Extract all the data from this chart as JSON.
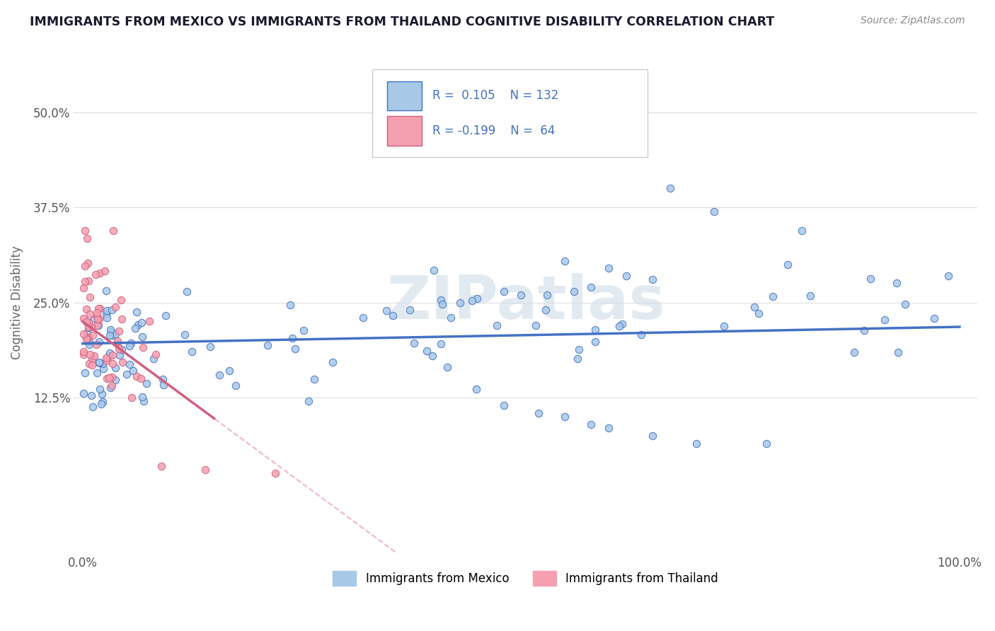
{
  "title": "IMMIGRANTS FROM MEXICO VS IMMIGRANTS FROM THAILAND COGNITIVE DISABILITY CORRELATION CHART",
  "source": "Source: ZipAtlas.com",
  "ylabel": "Cognitive Disability",
  "xlim": [
    0.0,
    1.0
  ],
  "ylim": [
    -0.08,
    0.58
  ],
  "xtick_positions": [
    0.0,
    1.0
  ],
  "xtick_labels": [
    "0.0%",
    "100.0%"
  ],
  "ytick_values": [
    0.125,
    0.25,
    0.375,
    0.5
  ],
  "ytick_labels": [
    "12.5%",
    "25.0%",
    "37.5%",
    "50.0%"
  ],
  "r_mexico": 0.105,
  "n_mexico": 132,
  "r_thailand": -0.199,
  "n_thailand": 64,
  "color_mexico_fill": "#a8c8e8",
  "color_mexico_edge": "#4472c4",
  "color_thailand_fill": "#f4a0b0",
  "color_thailand_edge": "#d06080",
  "color_mexico_line": "#4472c4",
  "color_thailand_line_solid": "#d06080",
  "color_thailand_line_dashed": "#f0b8c4",
  "background_color": "#ffffff",
  "grid_color": "#e0e0e0",
  "title_color": "#1a1a2e",
  "legend_text_color": "#4472c4",
  "watermark": "ZIPatlas",
  "watermark_color": "#d0dce8",
  "source_color": "#888888",
  "ylabel_color": "#666666"
}
